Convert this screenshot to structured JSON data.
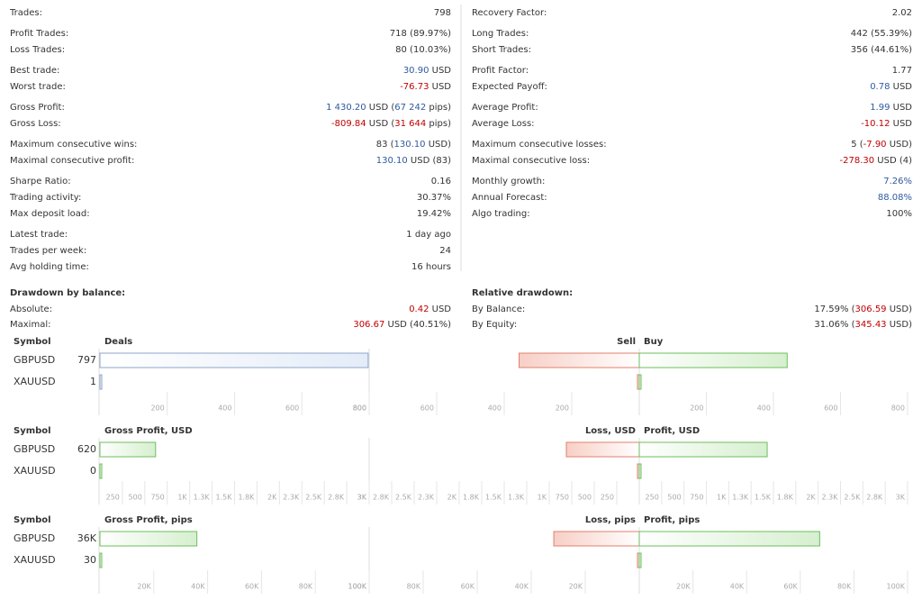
{
  "tones": {
    "pos": "#2e5aa0",
    "neg": "#c00000"
  },
  "stats": {
    "left": [
      [
        {
          "label": "Trades:",
          "value": [
            {
              "t": "798"
            }
          ]
        }
      ],
      [
        {
          "label": "Profit Trades:",
          "value": [
            {
              "t": "718 (89.97%)"
            }
          ]
        },
        {
          "label": "Loss Trades:",
          "value": [
            {
              "t": "80 (10.03%)"
            }
          ]
        }
      ],
      [
        {
          "label": "Best trade:",
          "value": [
            {
              "t": "30.90",
              "tone": "pos"
            },
            {
              "t": " USD"
            }
          ]
        },
        {
          "label": "Worst trade:",
          "value": [
            {
              "t": "-76.73",
              "tone": "neg"
            },
            {
              "t": " USD"
            }
          ]
        }
      ],
      [
        {
          "label": "Gross Profit:",
          "value": [
            {
              "t": "1 430.20",
              "tone": "pos"
            },
            {
              "t": " USD ("
            },
            {
              "t": "67 242",
              "tone": "pos"
            },
            {
              "t": " pips)"
            }
          ]
        },
        {
          "label": "Gross Loss:",
          "value": [
            {
              "t": "-809.84",
              "tone": "neg"
            },
            {
              "t": " USD ("
            },
            {
              "t": "31 644",
              "tone": "neg"
            },
            {
              "t": " pips)"
            }
          ]
        }
      ],
      [
        {
          "label": "Maximum consecutive wins:",
          "value": [
            {
              "t": "83 ("
            },
            {
              "t": "130.10",
              "tone": "pos"
            },
            {
              "t": " USD)"
            }
          ]
        },
        {
          "label": "Maximal consecutive profit:",
          "value": [
            {
              "t": "130.10",
              "tone": "pos"
            },
            {
              "t": " USD (83)"
            }
          ]
        }
      ],
      [
        {
          "label": "Sharpe Ratio:",
          "value": [
            {
              "t": "0.16"
            }
          ]
        },
        {
          "label": "Trading activity:",
          "value": [
            {
              "t": "30.37%"
            }
          ]
        },
        {
          "label": "Max deposit load:",
          "value": [
            {
              "t": "19.42%"
            }
          ]
        }
      ],
      [
        {
          "label": "Latest trade:",
          "value": [
            {
              "t": "1 day ago"
            }
          ]
        },
        {
          "label": "Trades per week:",
          "value": [
            {
              "t": "24"
            }
          ]
        },
        {
          "label": "Avg holding time:",
          "value": [
            {
              "t": "16 hours"
            }
          ]
        }
      ]
    ],
    "right": [
      [
        {
          "label": "Recovery Factor:",
          "value": [
            {
              "t": "2.02"
            }
          ]
        }
      ],
      [
        {
          "label": "Long Trades:",
          "value": [
            {
              "t": "442 (55.39%)"
            }
          ]
        },
        {
          "label": "Short Trades:",
          "value": [
            {
              "t": "356 (44.61%)"
            }
          ]
        }
      ],
      [
        {
          "label": "Profit Factor:",
          "value": [
            {
              "t": "1.77"
            }
          ]
        },
        {
          "label": "Expected Payoff:",
          "value": [
            {
              "t": "0.78",
              "tone": "pos"
            },
            {
              "t": " USD"
            }
          ]
        }
      ],
      [
        {
          "label": "Average Profit:",
          "value": [
            {
              "t": "1.99",
              "tone": "pos"
            },
            {
              "t": " USD"
            }
          ]
        },
        {
          "label": "Average Loss:",
          "value": [
            {
              "t": "-10.12",
              "tone": "neg"
            },
            {
              "t": " USD"
            }
          ]
        }
      ],
      [
        {
          "label": "Maximum consecutive losses:",
          "value": [
            {
              "t": "5 ("
            },
            {
              "t": "-7.90",
              "tone": "neg"
            },
            {
              "t": " USD)"
            }
          ]
        },
        {
          "label": "Maximal consecutive loss:",
          "value": [
            {
              "t": "-278.30",
              "tone": "neg"
            },
            {
              "t": " USD (4)"
            }
          ]
        }
      ],
      [
        {
          "label": "Monthly growth:",
          "value": [
            {
              "t": "7.26%",
              "tone": "pos"
            }
          ]
        },
        {
          "label": "Annual Forecast:",
          "value": [
            {
              "t": "88.08%",
              "tone": "pos"
            }
          ]
        },
        {
          "label": "Algo trading:",
          "value": [
            {
              "t": "100%"
            }
          ]
        }
      ]
    ]
  },
  "drawdown": {
    "left": {
      "title": "Drawdown by balance:",
      "rows": [
        {
          "label": "Absolute:",
          "value": [
            {
              "t": "0.42",
              "tone": "neg"
            },
            {
              "t": " USD"
            }
          ]
        },
        {
          "label": "Maximal:",
          "value": [
            {
              "t": "306.67",
              "tone": "neg"
            },
            {
              "t": " USD (40.51%)"
            }
          ]
        }
      ]
    },
    "right": {
      "title": "Relative drawdown:",
      "rows": [
        {
          "label": "By Balance:",
          "value": [
            {
              "t": "17.59% ("
            },
            {
              "t": "306.59",
              "tone": "neg"
            },
            {
              "t": " USD)"
            }
          ]
        },
        {
          "label": "By Equity:",
          "value": [
            {
              "t": "31.06% ("
            },
            {
              "t": "345.43",
              "tone": "neg"
            },
            {
              "t": " USD)"
            }
          ]
        }
      ]
    }
  },
  "chart_data": [
    {
      "type": "bar",
      "symbol_header": "Symbol",
      "title": "Deals",
      "categories": [
        "GBPUSD",
        "XAUUSD"
      ],
      "values": [
        797,
        1
      ],
      "color": "#e4ecf8",
      "border": "#8ea6c8",
      "xlim": [
        0,
        800
      ],
      "xticks": [
        200,
        400,
        600,
        800
      ],
      "xlim2": [
        0,
        800
      ],
      "sides": [
        {
          "name": "Sell",
          "values": [
            356,
            0
          ],
          "color": "#f7cfc6",
          "border": "#e0806e",
          "xticks": [
            800,
            600,
            400,
            200
          ]
        },
        {
          "name": "Buy",
          "values": [
            441,
            1
          ],
          "color": "#d6efcf",
          "border": "#6cbf5c",
          "xticks": [
            200,
            400,
            600,
            800
          ]
        }
      ]
    },
    {
      "type": "bar",
      "symbol_header": "Symbol",
      "title": "Gross Profit, USD",
      "categories": [
        "GBPUSD",
        "XAUUSD"
      ],
      "values": [
        620,
        0
      ],
      "color": "#d6efcf",
      "border": "#6cbf5c",
      "xlim": [
        0,
        3000
      ],
      "xticks": [
        250,
        500,
        750,
        {
          "value": 1000,
          "label": "1K"
        },
        {
          "value": 1250,
          "label": "1.3K"
        },
        {
          "value": 1500,
          "label": "1.5K"
        },
        {
          "value": 1750,
          "label": "1.8K"
        },
        {
          "value": 2000,
          "label": "2K"
        },
        {
          "value": 2250,
          "label": "2.3K"
        },
        {
          "value": 2500,
          "label": "2.5K"
        },
        {
          "value": 2750,
          "label": "2.8K"
        },
        {
          "value": 3000,
          "label": "3K"
        }
      ],
      "xlim2": [
        0,
        3000
      ],
      "sides": [
        {
          "name": "Loss, USD",
          "values": [
            810,
            0
          ],
          "color": "#f7cfc6",
          "border": "#e0806e",
          "xticks": [
            {
              "value": 3000,
              "label": "3K"
            },
            {
              "value": 2750,
              "label": "2.8K"
            },
            {
              "value": 2500,
              "label": "2.5K"
            },
            {
              "value": 2250,
              "label": "2.3K"
            },
            {
              "value": 2000,
              "label": "2K"
            },
            {
              "value": 1750,
              "label": "1.8K"
            },
            {
              "value": 1500,
              "label": "1.5K"
            },
            {
              "value": 1250,
              "label": "1.3K"
            },
            {
              "value": 1000,
              "label": "1K"
            },
            750,
            500,
            250
          ]
        },
        {
          "name": "Profit, USD",
          "values": [
            1430,
            0
          ],
          "color": "#d6efcf",
          "border": "#6cbf5c",
          "xticks": [
            250,
            500,
            750,
            {
              "value": 1000,
              "label": "1K"
            },
            {
              "value": 1250,
              "label": "1.3K"
            },
            {
              "value": 1500,
              "label": "1.5K"
            },
            {
              "value": 1750,
              "label": "1.8K"
            },
            {
              "value": 2000,
              "label": "2K"
            },
            {
              "value": 2250,
              "label": "2.3K"
            },
            {
              "value": 2500,
              "label": "2.5K"
            },
            {
              "value": 2750,
              "label": "2.8K"
            },
            {
              "value": 3000,
              "label": "3K"
            }
          ]
        }
      ]
    },
    {
      "type": "bar",
      "symbol_header": "Symbol",
      "title": "Gross Profit, pips",
      "categories": [
        "GBPUSD",
        "XAUUSD"
      ],
      "values": [
        36000,
        30
      ],
      "value_labels": [
        "36K",
        "30"
      ],
      "color": "#d6efcf",
      "border": "#6cbf5c",
      "xlim": [
        0,
        100000
      ],
      "xticks": [
        {
          "value": 20000,
          "label": "20K"
        },
        {
          "value": 40000,
          "label": "40K"
        },
        {
          "value": 60000,
          "label": "60K"
        },
        {
          "value": 80000,
          "label": "80K"
        },
        {
          "value": 100000,
          "label": "100K"
        }
      ],
      "xlim2": [
        0,
        100000
      ],
      "sides": [
        {
          "name": "Loss, pips",
          "values": [
            31644,
            0
          ],
          "color": "#f7cfc6",
          "border": "#e0806e",
          "xticks": [
            {
              "value": 100000,
              "label": "100K"
            },
            {
              "value": 80000,
              "label": "80K"
            },
            {
              "value": 60000,
              "label": "60K"
            },
            {
              "value": 40000,
              "label": "40K"
            },
            {
              "value": 20000,
              "label": "20K"
            }
          ]
        },
        {
          "name": "Profit, pips",
          "values": [
            67242,
            30
          ],
          "color": "#d6efcf",
          "border": "#6cbf5c",
          "xticks": [
            {
              "value": 20000,
              "label": "20K"
            },
            {
              "value": 40000,
              "label": "40K"
            },
            {
              "value": 60000,
              "label": "60K"
            },
            {
              "value": 80000,
              "label": "80K"
            },
            {
              "value": 100000,
              "label": "100K"
            }
          ]
        }
      ]
    }
  ]
}
